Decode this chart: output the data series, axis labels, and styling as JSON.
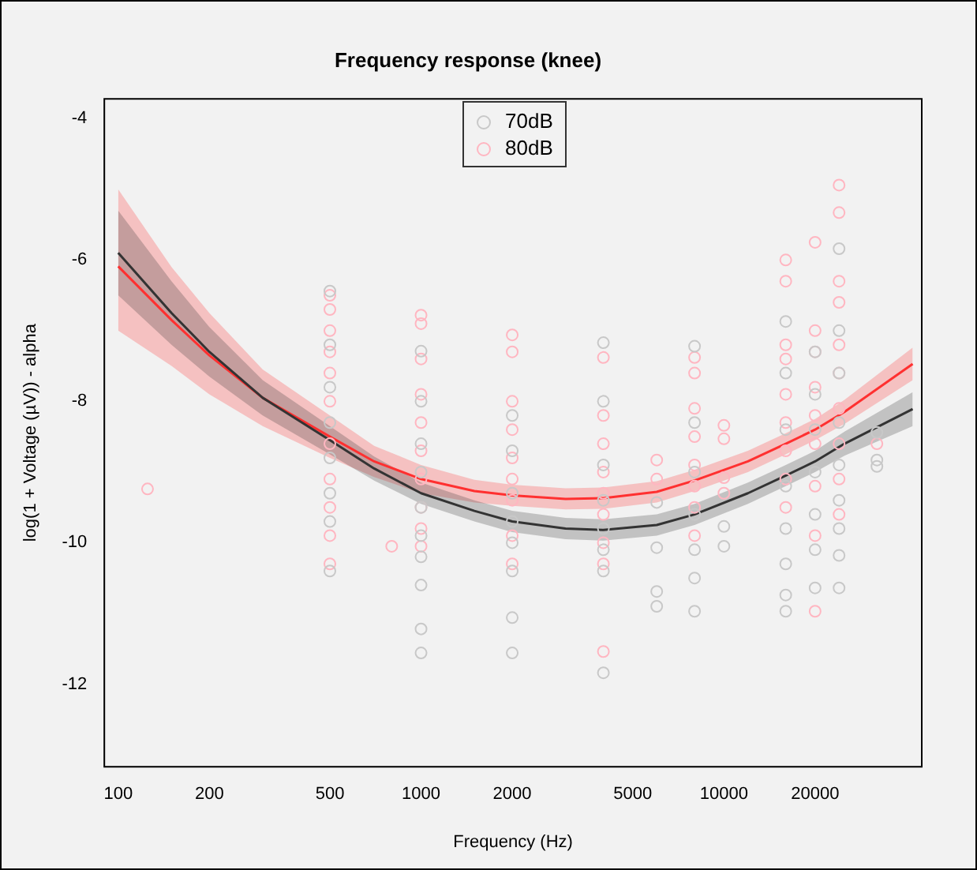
{
  "chart_data": {
    "type": "scatter",
    "title": "Frequency response (knee)",
    "xlabel": "Frequency (Hz)",
    "ylabel": "log(1 + Voltage (µV)) - alpha",
    "log": "x",
    "xlim": [
      90,
      45000
    ],
    "xticks": [
      100,
      200,
      500,
      1000,
      2000,
      5000,
      10000,
      20000
    ],
    "ylim": [
      -13.17,
      -3.72
    ],
    "yticks": [
      -12,
      -10,
      -8,
      -6,
      -4
    ],
    "grid": false,
    "legend": "top",
    "marker": "circle",
    "line_style": "solid",
    "series": [
      {
        "name": "70dB",
        "color": "#c8c8c8",
        "x": [
          500,
          500,
          500,
          500,
          500,
          500,
          500,
          500,
          1000,
          1000,
          1000,
          1000,
          1000,
          1000,
          1000,
          1000,
          1000,
          1000,
          2000,
          2000,
          2000,
          2000,
          2000,
          2000,
          2000,
          2000,
          4000,
          4000,
          4000,
          4000,
          4000,
          4000,
          4000,
          4000,
          6000,
          6000,
          6000,
          6000,
          8000,
          8000,
          8000,
          8000,
          8000,
          8000,
          8000,
          10000,
          10000,
          16000,
          16000,
          16000,
          16000,
          16000,
          16000,
          16000,
          16000,
          20000,
          20000,
          20000,
          20000,
          20000,
          20000,
          20000,
          24000,
          24000,
          24000,
          24000,
          24000,
          24000,
          24000,
          24000,
          24000,
          32000,
          32000,
          32000
        ],
        "values": [
          -6.44,
          -7.2,
          -7.8,
          -8.3,
          -8.8,
          -9.3,
          -9.7,
          -10.4,
          -7.29,
          -8.0,
          -8.6,
          -9.0,
          -9.5,
          -9.9,
          -10.2,
          -10.6,
          -11.22,
          -11.56,
          -8.2,
          -8.7,
          -9.3,
          -9.7,
          -10.0,
          -10.4,
          -11.06,
          -11.56,
          -7.17,
          -8.0,
          -8.9,
          -9.4,
          -9.8,
          -10.1,
          -10.4,
          -11.84,
          -9.43,
          -10.07,
          -10.69,
          -10.9,
          -7.22,
          -8.3,
          -9.0,
          -9.6,
          -10.1,
          -10.5,
          -10.97,
          -9.77,
          -10.05,
          -6.87,
          -7.6,
          -8.4,
          -9.2,
          -9.8,
          -10.3,
          -10.74,
          -10.97,
          -7.3,
          -7.9,
          -8.4,
          -9.0,
          -9.6,
          -10.1,
          -10.64,
          -5.84,
          -7.0,
          -7.6,
          -8.3,
          -8.9,
          -9.4,
          -9.8,
          -10.18,
          -10.64,
          -8.44,
          -8.83,
          -8.92
        ]
      },
      {
        "name": "80dB",
        "color": "#ffb6c1",
        "x": [
          125,
          500,
          500,
          500,
          500,
          500,
          500,
          500,
          500,
          500,
          500,
          500,
          800,
          1000,
          1000,
          1000,
          1000,
          1000,
          1000,
          1000,
          1000,
          1000,
          1000,
          2000,
          2000,
          2000,
          2000,
          2000,
          2000,
          2000,
          2000,
          2000,
          4000,
          4000,
          4000,
          4000,
          4000,
          4000,
          4000,
          4000,
          4000,
          6000,
          6000,
          8000,
          8000,
          8000,
          8000,
          8000,
          8000,
          8000,
          8000,
          10000,
          10000,
          10000,
          10000,
          16000,
          16000,
          16000,
          16000,
          16000,
          16000,
          16000,
          16000,
          16000,
          20000,
          20000,
          20000,
          20000,
          20000,
          20000,
          20000,
          20000,
          20000,
          24000,
          24000,
          24000,
          24000,
          24000,
          24000,
          24000,
          24000,
          24000,
          24000,
          32000
        ],
        "values": [
          -9.24,
          -6.5,
          -6.7,
          -7.0,
          -7.3,
          -7.6,
          -8.0,
          -8.6,
          -9.1,
          -9.5,
          -9.9,
          -10.3,
          -10.05,
          -6.78,
          -6.9,
          -7.4,
          -7.9,
          -8.3,
          -8.7,
          -9.1,
          -9.5,
          -9.8,
          -10.05,
          -7.06,
          -7.3,
          -8.0,
          -8.4,
          -8.8,
          -9.1,
          -9.4,
          -9.9,
          -10.3,
          -7.38,
          -8.2,
          -8.6,
          -9.0,
          -9.3,
          -9.6,
          -10.0,
          -10.3,
          -11.54,
          -8.83,
          -9.1,
          -7.38,
          -7.6,
          -8.1,
          -8.5,
          -8.9,
          -9.2,
          -9.5,
          -9.9,
          -8.34,
          -8.53,
          -9.08,
          -9.3,
          -6.0,
          -6.3,
          -7.2,
          -7.4,
          -7.9,
          -8.3,
          -8.7,
          -9.1,
          -9.5,
          -5.75,
          -7.0,
          -7.3,
          -7.8,
          -8.2,
          -8.6,
          -9.2,
          -9.9,
          -10.97,
          -4.94,
          -5.33,
          -6.3,
          -6.6,
          -7.2,
          -7.6,
          -8.1,
          -8.6,
          -9.1,
          -9.6,
          -8.6
        ]
      },
      {
        "type": "line",
        "marker": "none",
        "color": "#333333",
        "x": [
          100,
          150,
          200,
          300,
          500,
          700,
          1000,
          1500,
          2000,
          3000,
          4000,
          6000,
          8000,
          12000,
          16000,
          20000,
          25000,
          42000
        ],
        "values": [
          -5.9,
          -6.75,
          -7.3,
          -7.95,
          -8.55,
          -8.95,
          -9.3,
          -9.55,
          -9.7,
          -9.8,
          -9.82,
          -9.75,
          -9.6,
          -9.3,
          -9.05,
          -8.85,
          -8.6,
          -8.11
        ],
        "lower": [
          -6.5,
          -7.2,
          -7.65,
          -8.2,
          -8.75,
          -9.12,
          -9.45,
          -9.7,
          -9.85,
          -9.95,
          -9.97,
          -9.9,
          -9.75,
          -9.45,
          -9.2,
          -9.0,
          -8.77,
          -8.35
        ],
        "upper": [
          -5.3,
          -6.3,
          -6.95,
          -7.7,
          -8.35,
          -8.78,
          -9.15,
          -9.4,
          -9.55,
          -9.65,
          -9.67,
          -9.6,
          -9.45,
          -9.15,
          -8.9,
          -8.7,
          -8.43,
          -7.87
        ]
      },
      {
        "type": "line",
        "marker": "none",
        "color": "#ff3030",
        "x": [
          100,
          150,
          200,
          300,
          500,
          700,
          1000,
          1500,
          2000,
          3000,
          4000,
          6000,
          8000,
          12000,
          16000,
          20000,
          25000,
          42000
        ],
        "values": [
          -6.09,
          -6.85,
          -7.35,
          -7.95,
          -8.5,
          -8.85,
          -9.1,
          -9.27,
          -9.33,
          -9.38,
          -9.37,
          -9.28,
          -9.12,
          -8.85,
          -8.6,
          -8.4,
          -8.15,
          -7.47
        ],
        "lower": [
          -7.0,
          -7.5,
          -7.9,
          -8.35,
          -8.8,
          -9.07,
          -9.3,
          -9.43,
          -9.48,
          -9.53,
          -9.52,
          -9.43,
          -9.27,
          -9.0,
          -8.75,
          -8.55,
          -8.32,
          -7.7
        ],
        "upper": [
          -5.0,
          -6.1,
          -6.75,
          -7.55,
          -8.2,
          -8.63,
          -8.9,
          -9.11,
          -9.18,
          -9.23,
          -9.22,
          -9.13,
          -8.97,
          -8.7,
          -8.45,
          -8.25,
          -7.98,
          -7.24
        ]
      }
    ]
  }
}
